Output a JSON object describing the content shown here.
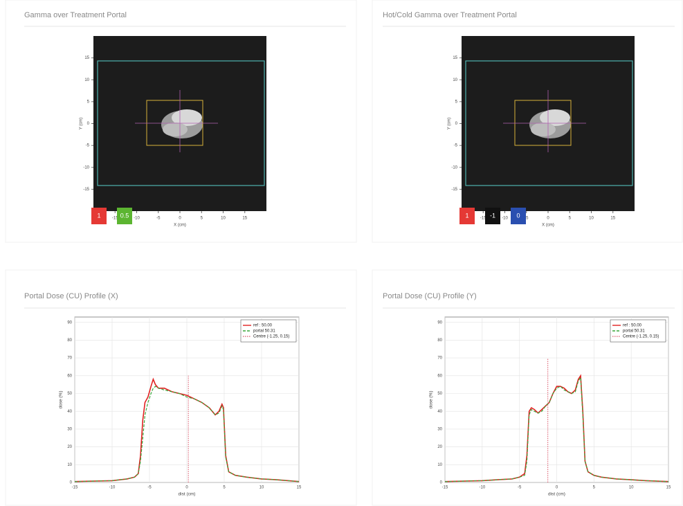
{
  "panels": [
    {
      "title": "Gamma over Treatment Portal"
    },
    {
      "title": "Hot/Cold Gamma over Treatment Portal"
    },
    {
      "title": "Portal Dose (CU) Profile (X)"
    },
    {
      "title": "Portal Dose (CU) Profile (Y)"
    }
  ],
  "portal_images": [
    {
      "xlabel": "X (cm)",
      "ylabel": "Y (cm)",
      "xlim": [
        -20,
        20
      ],
      "ylim": [
        -20,
        20
      ],
      "xticks": [
        -15,
        -10,
        -5,
        0,
        5,
        10,
        15
      ],
      "yticks": [
        15,
        10,
        5,
        0,
        -5,
        -10,
        -15
      ],
      "swatches": [
        {
          "color": "#e53935",
          "label": "1"
        },
        {
          "color": "#5cb531",
          "label": "0.5"
        }
      ]
    },
    {
      "xlabel": "X (cm)",
      "ylabel": "Y (cm)",
      "xlim": [
        -20,
        20
      ],
      "ylim": [
        -20,
        20
      ],
      "xticks": [
        -15,
        -10,
        -5,
        0,
        5,
        10,
        15
      ],
      "yticks": [
        15,
        10,
        5,
        0,
        -5,
        -10,
        -15
      ],
      "swatches": [
        {
          "color": "#e53935",
          "label": "1"
        },
        {
          "color": "#111111",
          "label": "-1"
        },
        {
          "color": "#2a4fb0",
          "label": "0"
        }
      ]
    }
  ],
  "chart_data": [
    {
      "type": "line",
      "xlabel": "dist (cm)",
      "ylabel": "dose (%)",
      "xlim": [
        -15,
        15
      ],
      "ylim": [
        0,
        93
      ],
      "xticks": [
        -15,
        -10,
        -5,
        0,
        5,
        10,
        15
      ],
      "yticks": [
        0,
        10,
        20,
        30,
        40,
        50,
        60,
        70,
        80,
        90
      ],
      "grid": true,
      "legend": "upper right",
      "series": [
        {
          "name": "ref : 50.00",
          "color": "#e02020",
          "style": "solid",
          "x": [
            -15,
            -12,
            -10,
            -8,
            -7,
            -6.5,
            -6.2,
            -5.9,
            -5.6,
            -5.2,
            -4.8,
            -4.5,
            -4.2,
            -3.8,
            -3,
            -2,
            -1,
            0,
            1,
            2,
            3,
            3.8,
            4.3,
            4.7,
            4.9,
            5.2,
            5.6,
            6.5,
            8,
            10,
            12,
            15
          ],
          "values": [
            0.5,
            0.8,
            1,
            2,
            3,
            5,
            15,
            35,
            45,
            48,
            54,
            58,
            55,
            53,
            53,
            51,
            50,
            49,
            47,
            45,
            42,
            38,
            40,
            44,
            42,
            15,
            6,
            4,
            3,
            2,
            1.5,
            0.5
          ]
        },
        {
          "name": "portal 50.31",
          "color": "#3aa63a",
          "style": "dashed",
          "x": [
            -15,
            -12,
            -10,
            -8,
            -7,
            -6.5,
            -6.2,
            -5.9,
            -5.6,
            -5.2,
            -4.8,
            -4.5,
            -4.2,
            -3.8,
            -3,
            -2,
            -1,
            0,
            1,
            2,
            3,
            3.8,
            4.3,
            4.7,
            4.9,
            5.2,
            5.6,
            6.5,
            8,
            10,
            12,
            15
          ],
          "values": [
            0.5,
            0.8,
            1,
            2,
            3,
            5,
            12,
            25,
            38,
            45,
            50,
            53,
            54,
            53,
            52,
            51,
            50,
            48,
            47,
            45,
            42,
            38,
            39,
            43,
            41,
            14,
            6,
            4,
            3,
            2,
            1.5,
            0.5
          ]
        },
        {
          "name": "Centre (-1.25, 0.15)",
          "color": "#e07080",
          "style": "dotted",
          "x": [
            0.2,
            0.2
          ],
          "values": [
            0,
            60
          ]
        }
      ]
    },
    {
      "type": "line",
      "xlabel": "dist (cm)",
      "ylabel": "dose (%)",
      "xlim": [
        -15,
        15
      ],
      "ylim": [
        0,
        93
      ],
      "xticks": [
        -15,
        -10,
        -5,
        0,
        5,
        10,
        15
      ],
      "yticks": [
        0,
        10,
        20,
        30,
        40,
        50,
        60,
        70,
        80,
        90
      ],
      "grid": true,
      "legend": "upper right",
      "series": [
        {
          "name": "ref : 50.00",
          "color": "#e02020",
          "style": "solid",
          "x": [
            -15,
            -12,
            -10,
            -8,
            -6,
            -5,
            -4.3,
            -4,
            -3.7,
            -3.4,
            -3,
            -2.5,
            -2,
            -1.5,
            -1,
            -0.5,
            0,
            0.5,
            1,
            1.5,
            2,
            2.5,
            2.9,
            3.2,
            3.5,
            3.8,
            4.2,
            5,
            6,
            8,
            10,
            12,
            15
          ],
          "values": [
            0.5,
            0.8,
            1,
            1.5,
            2,
            3,
            5,
            15,
            40,
            42,
            41,
            39,
            41,
            43,
            45,
            50,
            54,
            54,
            53,
            51,
            50,
            52,
            58,
            60,
            40,
            12,
            6,
            4,
            3,
            2,
            1.5,
            1,
            0.5
          ]
        },
        {
          "name": "portal 50.31",
          "color": "#3aa63a",
          "style": "dashed",
          "x": [
            -15,
            -12,
            -10,
            -8,
            -6,
            -5,
            -4.3,
            -4,
            -3.7,
            -3.4,
            -3,
            -2.5,
            -2,
            -1.5,
            -1,
            -0.5,
            0,
            0.5,
            1,
            1.5,
            2,
            2.5,
            2.9,
            3.2,
            3.5,
            3.8,
            4.2,
            5,
            6,
            8,
            10,
            12,
            15
          ],
          "values": [
            0.5,
            0.8,
            1,
            1.5,
            2,
            3,
            4,
            12,
            38,
            41,
            40,
            39,
            40,
            43,
            45,
            50,
            53,
            54,
            52,
            51,
            50,
            51,
            57,
            59,
            38,
            12,
            6,
            4,
            3,
            2,
            1.5,
            1,
            0.5
          ]
        },
        {
          "name": "Centre (-1.25, 0.15)",
          "color": "#e07080",
          "style": "dotted",
          "x": [
            -1.2,
            -1.2
          ],
          "values": [
            0,
            70
          ]
        }
      ]
    }
  ]
}
